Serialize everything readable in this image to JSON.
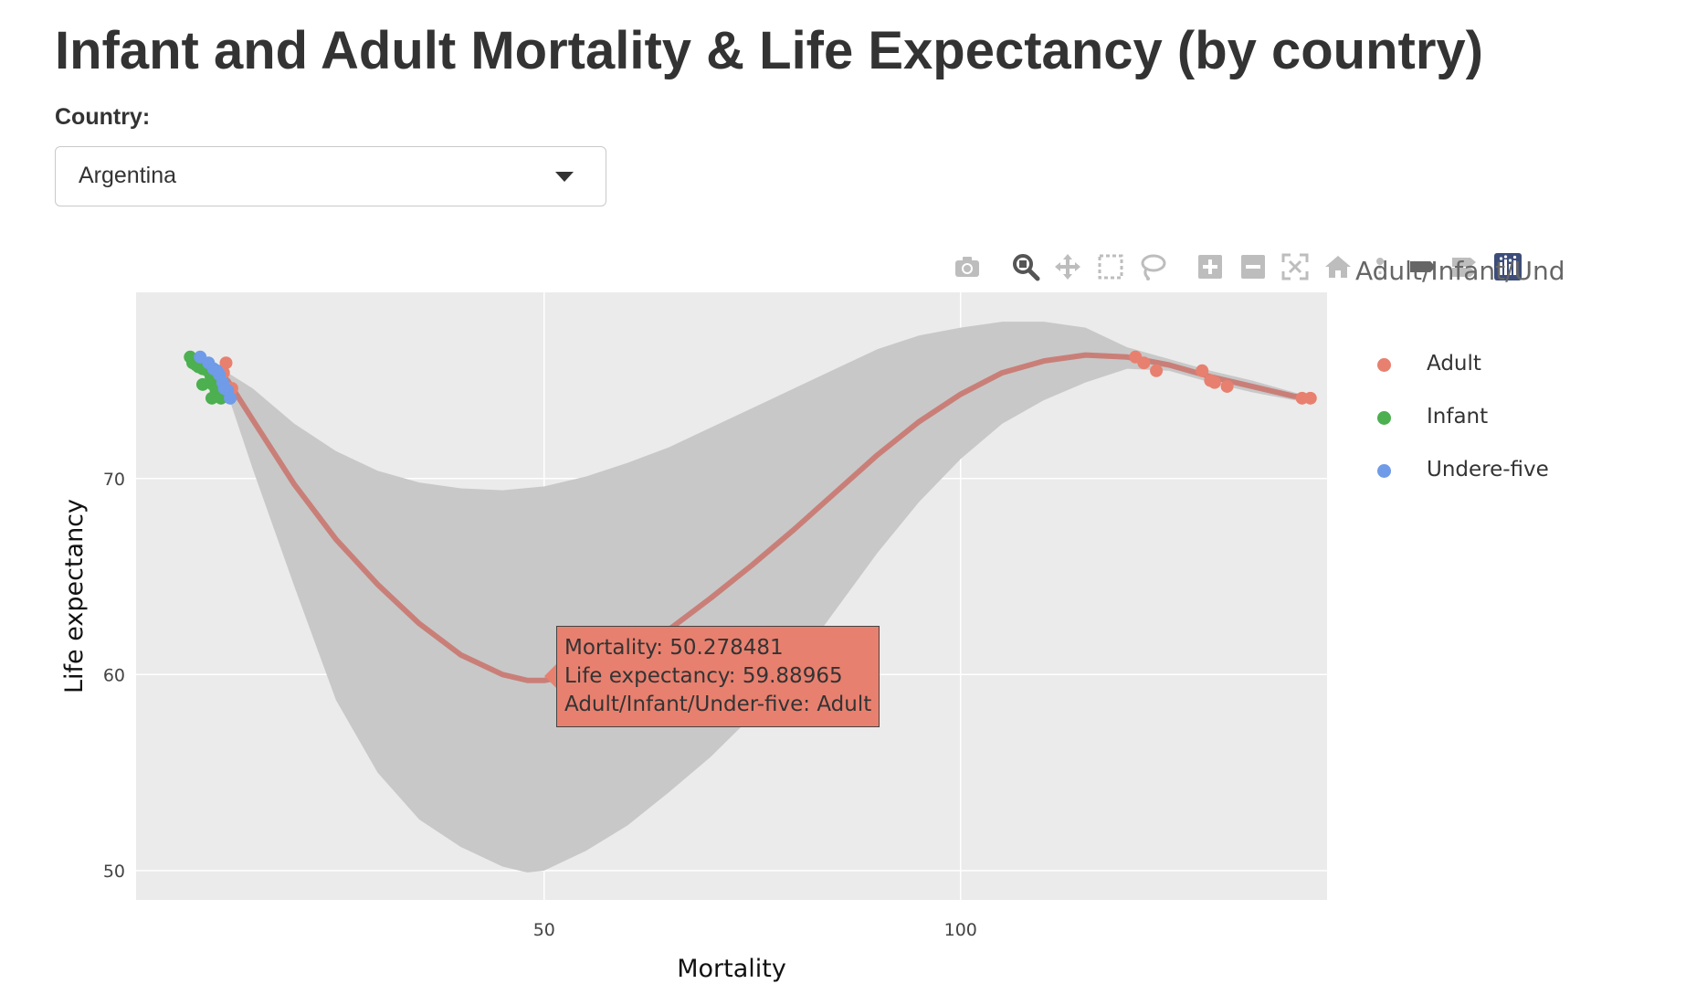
{
  "page": {
    "title": "Infant and Adult Mortality & Life Expectancy (by country)"
  },
  "country_filter": {
    "label": "Country:",
    "selected": "Argentina"
  },
  "modebar": {
    "icons": [
      "camera-icon",
      "zoom-icon",
      "pan-icon",
      "box-select-icon",
      "lasso-select-icon",
      "zoom-in-icon",
      "zoom-out-icon",
      "autoscale-icon",
      "reset-axes-icon",
      "spike-lines-icon",
      "hover-closest-icon",
      "hover-compare-icon",
      "plotly-logo-icon"
    ]
  },
  "tooltip": {
    "line1": "Mortality:  50.278481",
    "line2": "Life expectancy: 59.88965",
    "line3": "Adult/Infant/Under-five: Adult"
  },
  "chart_data": {
    "type": "scatter",
    "xlabel": "Mortality",
    "ylabel": "Life expectancy",
    "xlim": [
      1,
      144
    ],
    "ylim": [
      48.5,
      79.5
    ],
    "x_ticks": [
      50,
      100
    ],
    "y_ticks": [
      50,
      60,
      70
    ],
    "grid": true,
    "legend_title": "Adult/Infant/Und",
    "legend_position": "right",
    "colors": {
      "Adult": "#e8806f",
      "Infant": "#4caf50",
      "Undere-five": "#6f9be8",
      "smooth_line": "#c97f78",
      "confidence_band": "#c8c8c8",
      "plot_background": "#ebebeb"
    },
    "series": [
      {
        "name": "Adult",
        "points": [
          [
            11.8,
            75.9
          ],
          [
            11.5,
            75.4
          ],
          [
            12.5,
            74.6
          ],
          [
            11.0,
            75.0
          ],
          [
            121.0,
            76.2
          ],
          [
            122.0,
            75.9
          ],
          [
            123.5,
            75.5
          ],
          [
            129.0,
            75.5
          ],
          [
            130.0,
            75.0
          ],
          [
            130.5,
            74.9
          ],
          [
            132.0,
            74.7
          ],
          [
            141.0,
            74.1
          ],
          [
            142.0,
            74.1
          ]
        ]
      },
      {
        "name": "Infant",
        "points": [
          [
            7.5,
            76.2
          ],
          [
            7.8,
            75.9
          ],
          [
            8.5,
            75.7
          ],
          [
            9.0,
            75.6
          ],
          [
            9.6,
            75.5
          ],
          [
            10.0,
            75.2
          ],
          [
            9.0,
            74.8
          ],
          [
            10.2,
            74.8
          ],
          [
            10.6,
            74.5
          ],
          [
            10.1,
            74.1
          ],
          [
            11.2,
            74.1
          ],
          [
            8.2,
            75.8
          ]
        ]
      },
      {
        "name": "Undere-five",
        "points": [
          [
            8.7,
            76.2
          ],
          [
            9.7,
            75.9
          ],
          [
            10.3,
            75.6
          ],
          [
            11.0,
            75.3
          ],
          [
            11.4,
            74.9
          ],
          [
            12.0,
            74.5
          ],
          [
            12.3,
            74.1
          ],
          [
            10.7,
            75.5
          ],
          [
            11.6,
            74.6
          ]
        ]
      }
    ],
    "smooth_line": {
      "points": [
        [
          9,
          76.0
        ],
        [
          12,
          75.0
        ],
        [
          15,
          73.0
        ],
        [
          20,
          69.7
        ],
        [
          25,
          66.9
        ],
        [
          30,
          64.6
        ],
        [
          35,
          62.6
        ],
        [
          40,
          61.0
        ],
        [
          45,
          60.0
        ],
        [
          48,
          59.7
        ],
        [
          50,
          59.7
        ],
        [
          55,
          60.1
        ],
        [
          60,
          61.0
        ],
        [
          65,
          62.3
        ],
        [
          70,
          63.9
        ],
        [
          75,
          65.6
        ],
        [
          80,
          67.4
        ],
        [
          85,
          69.3
        ],
        [
          90,
          71.2
        ],
        [
          95,
          72.9
        ],
        [
          100,
          74.3
        ],
        [
          105,
          75.4
        ],
        [
          110,
          76.0
        ],
        [
          115,
          76.3
        ],
        [
          120,
          76.2
        ],
        [
          125,
          75.8
        ],
        [
          130,
          75.2
        ],
        [
          135,
          74.7
        ],
        [
          140,
          74.2
        ],
        [
          142,
          74.1
        ]
      ]
    },
    "confidence_band": {
      "upper": [
        [
          9,
          76.3
        ],
        [
          12,
          75.4
        ],
        [
          15,
          74.6
        ],
        [
          20,
          72.8
        ],
        [
          25,
          71.4
        ],
        [
          30,
          70.4
        ],
        [
          35,
          69.8
        ],
        [
          40,
          69.5
        ],
        [
          45,
          69.4
        ],
        [
          50,
          69.6
        ],
        [
          55,
          70.1
        ],
        [
          60,
          70.8
        ],
        [
          65,
          71.6
        ],
        [
          70,
          72.6
        ],
        [
          75,
          73.6
        ],
        [
          80,
          74.6
        ],
        [
          85,
          75.6
        ],
        [
          90,
          76.6
        ],
        [
          95,
          77.3
        ],
        [
          100,
          77.7
        ],
        [
          105,
          78.0
        ],
        [
          110,
          78.0
        ],
        [
          115,
          77.7
        ],
        [
          120,
          76.7
        ],
        [
          125,
          76.1
        ],
        [
          130,
          75.5
        ],
        [
          135,
          75.0
        ],
        [
          140,
          74.4
        ],
        [
          142,
          74.2
        ]
      ],
      "lower": [
        [
          9,
          75.7
        ],
        [
          12,
          74.3
        ],
        [
          15,
          70.5
        ],
        [
          20,
          64.5
        ],
        [
          25,
          58.7
        ],
        [
          30,
          55.0
        ],
        [
          35,
          52.6
        ],
        [
          40,
          51.2
        ],
        [
          45,
          50.2
        ],
        [
          48,
          49.9
        ],
        [
          50,
          50.0
        ],
        [
          55,
          51.0
        ],
        [
          60,
          52.3
        ],
        [
          65,
          54.0
        ],
        [
          70,
          55.8
        ],
        [
          75,
          57.9
        ],
        [
          80,
          60.4
        ],
        [
          85,
          63.3
        ],
        [
          90,
          66.2
        ],
        [
          95,
          68.8
        ],
        [
          100,
          71.0
        ],
        [
          105,
          72.8
        ],
        [
          110,
          74.0
        ],
        [
          115,
          74.9
        ],
        [
          120,
          75.6
        ],
        [
          125,
          75.5
        ],
        [
          130,
          74.9
        ],
        [
          135,
          74.4
        ],
        [
          140,
          74.0
        ],
        [
          142,
          73.9
        ]
      ]
    }
  }
}
